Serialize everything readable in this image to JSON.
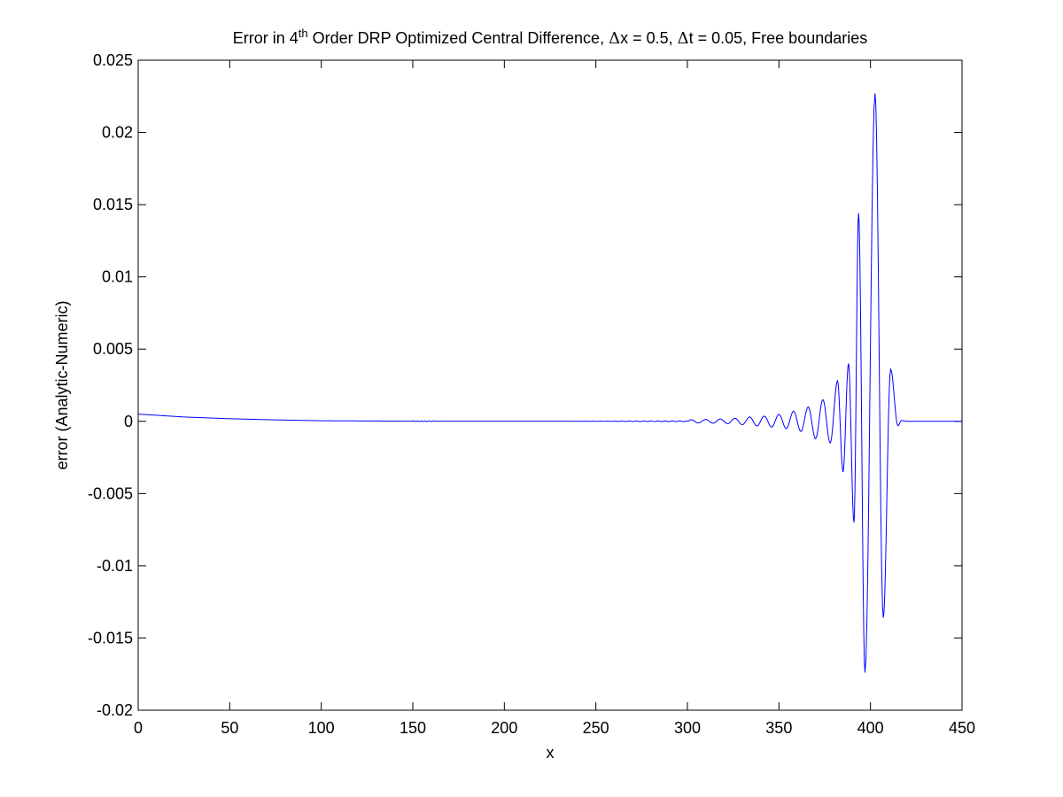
{
  "chart_data": {
    "type": "line",
    "title": {
      "prefix": "Error in 4",
      "superscript": "th",
      "suffix": " Order DRP Optimized Central Difference, ",
      "dx_symbol": "Δ",
      "dx_text": "x = 0.5, ",
      "dt_symbol": "Δ",
      "dt_text": "t = 0.05, Free boundaries"
    },
    "xlabel": "x",
    "ylabel": "error (Analytic-Numeric)",
    "xlim": [
      0,
      450
    ],
    "ylim": [
      -0.02,
      0.025
    ],
    "xticks": [
      0,
      50,
      100,
      150,
      200,
      250,
      300,
      350,
      400,
      450
    ],
    "xtick_labels": [
      "0",
      "50",
      "100",
      "150",
      "200",
      "250",
      "300",
      "350",
      "400",
      "450"
    ],
    "yticks": [
      -0.02,
      -0.015,
      -0.01,
      -0.005,
      0,
      0.005,
      0.01,
      0.015,
      0.02,
      0.025
    ],
    "ytick_labels": [
      "-0.02",
      "-0.015",
      "-0.01",
      "-0.005",
      "0",
      "0.005",
      "0.01",
      "0.015",
      "0.02",
      "0.025"
    ],
    "grid": false,
    "series": [
      {
        "name": "error",
        "color": "#0000ff",
        "baseline": [
          [
            0,
            0.0005
          ],
          [
            25,
            0.0003
          ],
          [
            50,
            0.00018
          ],
          [
            75,
            0.0001
          ],
          [
            100,
            4e-05
          ],
          [
            150,
            1e-05
          ],
          [
            450,
            0
          ]
        ],
        "extrema": [
          [
            300,
            0
          ],
          [
            302,
            0.00011
          ],
          [
            306,
            -0.00011
          ],
          [
            310,
            0.00013
          ],
          [
            314,
            -0.00013
          ],
          [
            318,
            0.00016
          ],
          [
            322,
            -0.00016
          ],
          [
            326,
            0.00021
          ],
          [
            330,
            -0.00023
          ],
          [
            334,
            0.0003
          ],
          [
            338,
            -0.00032
          ],
          [
            342,
            0.00036
          ],
          [
            346,
            -0.0004
          ],
          [
            350,
            0.00048
          ],
          [
            354,
            -0.0005
          ],
          [
            358,
            0.0007
          ],
          [
            362,
            -0.0007
          ],
          [
            366,
            0.001
          ],
          [
            370,
            -0.0012
          ],
          [
            374,
            0.0015
          ],
          [
            378,
            -0.0015
          ],
          [
            382,
            0.0028
          ],
          [
            385,
            -0.0035
          ],
          [
            388,
            0.004
          ],
          [
            391,
            -0.007
          ],
          [
            393.5,
            0.0144
          ],
          [
            397,
            -0.0174
          ],
          [
            402.5,
            0.0227
          ],
          [
            407,
            -0.0136
          ],
          [
            411,
            0.0036
          ],
          [
            415,
            -0.0003
          ],
          [
            417,
            5e-05
          ],
          [
            420,
            0
          ],
          [
            450,
            0
          ]
        ]
      }
    ]
  }
}
